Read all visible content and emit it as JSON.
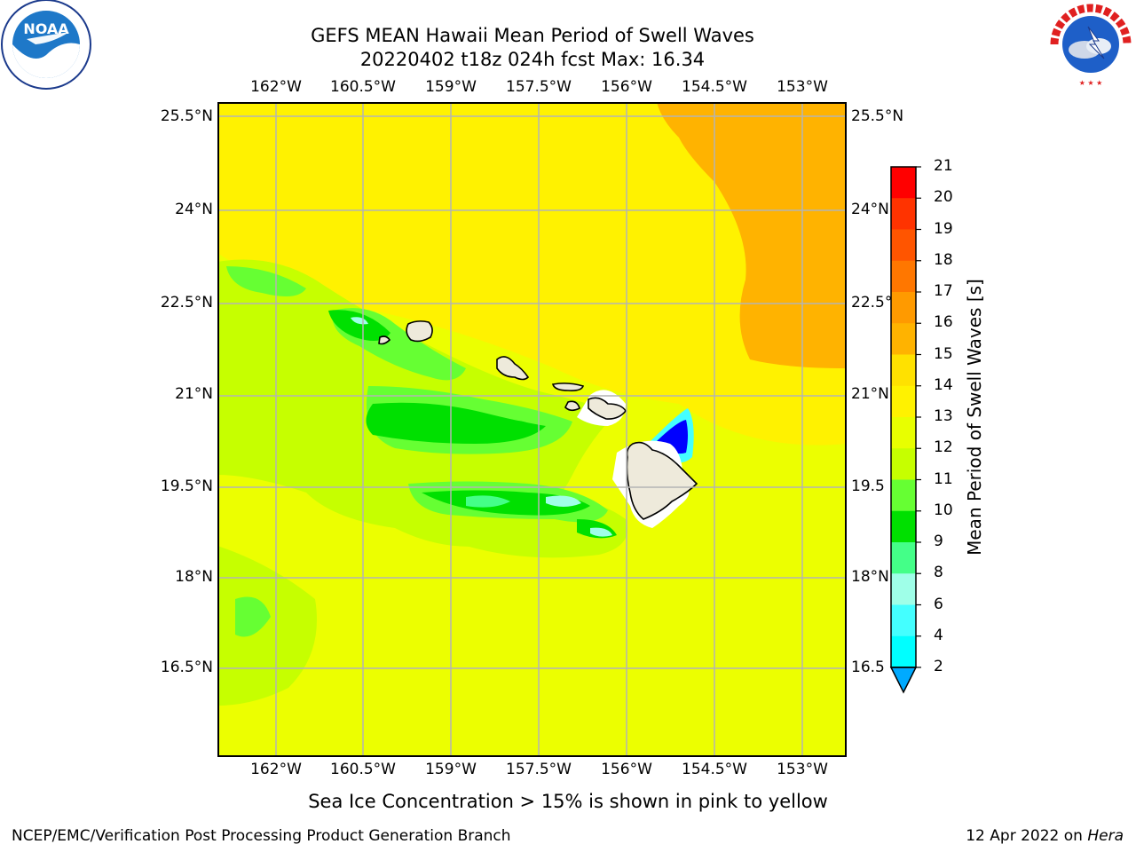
{
  "header": {
    "title_line1": "GEFS MEAN Hawaii Mean Period of Swell Waves",
    "title_line2": "20220402 t18z 024h fcst   Max: 16.34"
  },
  "logos": {
    "left": {
      "name": "noaa-logo",
      "text": "NOAA"
    },
    "right": {
      "name": "nws-logo",
      "text": "NATIONAL WEATHER SERVICE"
    }
  },
  "map": {
    "lon_ticks": [
      "162°W",
      "160.5°W",
      "159°W",
      "157.5°W",
      "156°W",
      "154.5°W",
      "153°W"
    ],
    "lat_ticks": [
      "25.5°N",
      "24°N",
      "22.5°N",
      "21°N",
      "19.5°N",
      "18°N",
      "16.5°N"
    ],
    "right_lat_ticks": [
      "25.5°N",
      "24°N",
      "22.5°",
      "21°N",
      "19.5",
      "18°N",
      "16.5"
    ]
  },
  "colorbar": {
    "label": "Mean Period of Swell Waves [s]",
    "levels": [
      "21",
      "20",
      "19",
      "18",
      "17",
      "16",
      "15",
      "14",
      "13",
      "12",
      "11",
      "10",
      "9",
      "8",
      "6",
      "4",
      "2"
    ],
    "colors": [
      "#ff0000",
      "#ff3300",
      "#ff5500",
      "#ff7700",
      "#ff9a00",
      "#ffb300",
      "#ffe100",
      "#fff200",
      "#e8ff00",
      "#c6ff00",
      "#66ff33",
      "#00e000",
      "#44ff88",
      "#9fffe8",
      "#44ffff",
      "#00ffff",
      "#00aaff",
      "#0066ff",
      "#0000ff"
    ]
  },
  "footer": {
    "note": "Sea Ice Concentration > 15% is shown in pink to yellow",
    "credit": "NCEP/EMC/Verification Post Processing Product Generation Branch",
    "date": "12 Apr 2022 on ",
    "machine": "Hera"
  }
}
